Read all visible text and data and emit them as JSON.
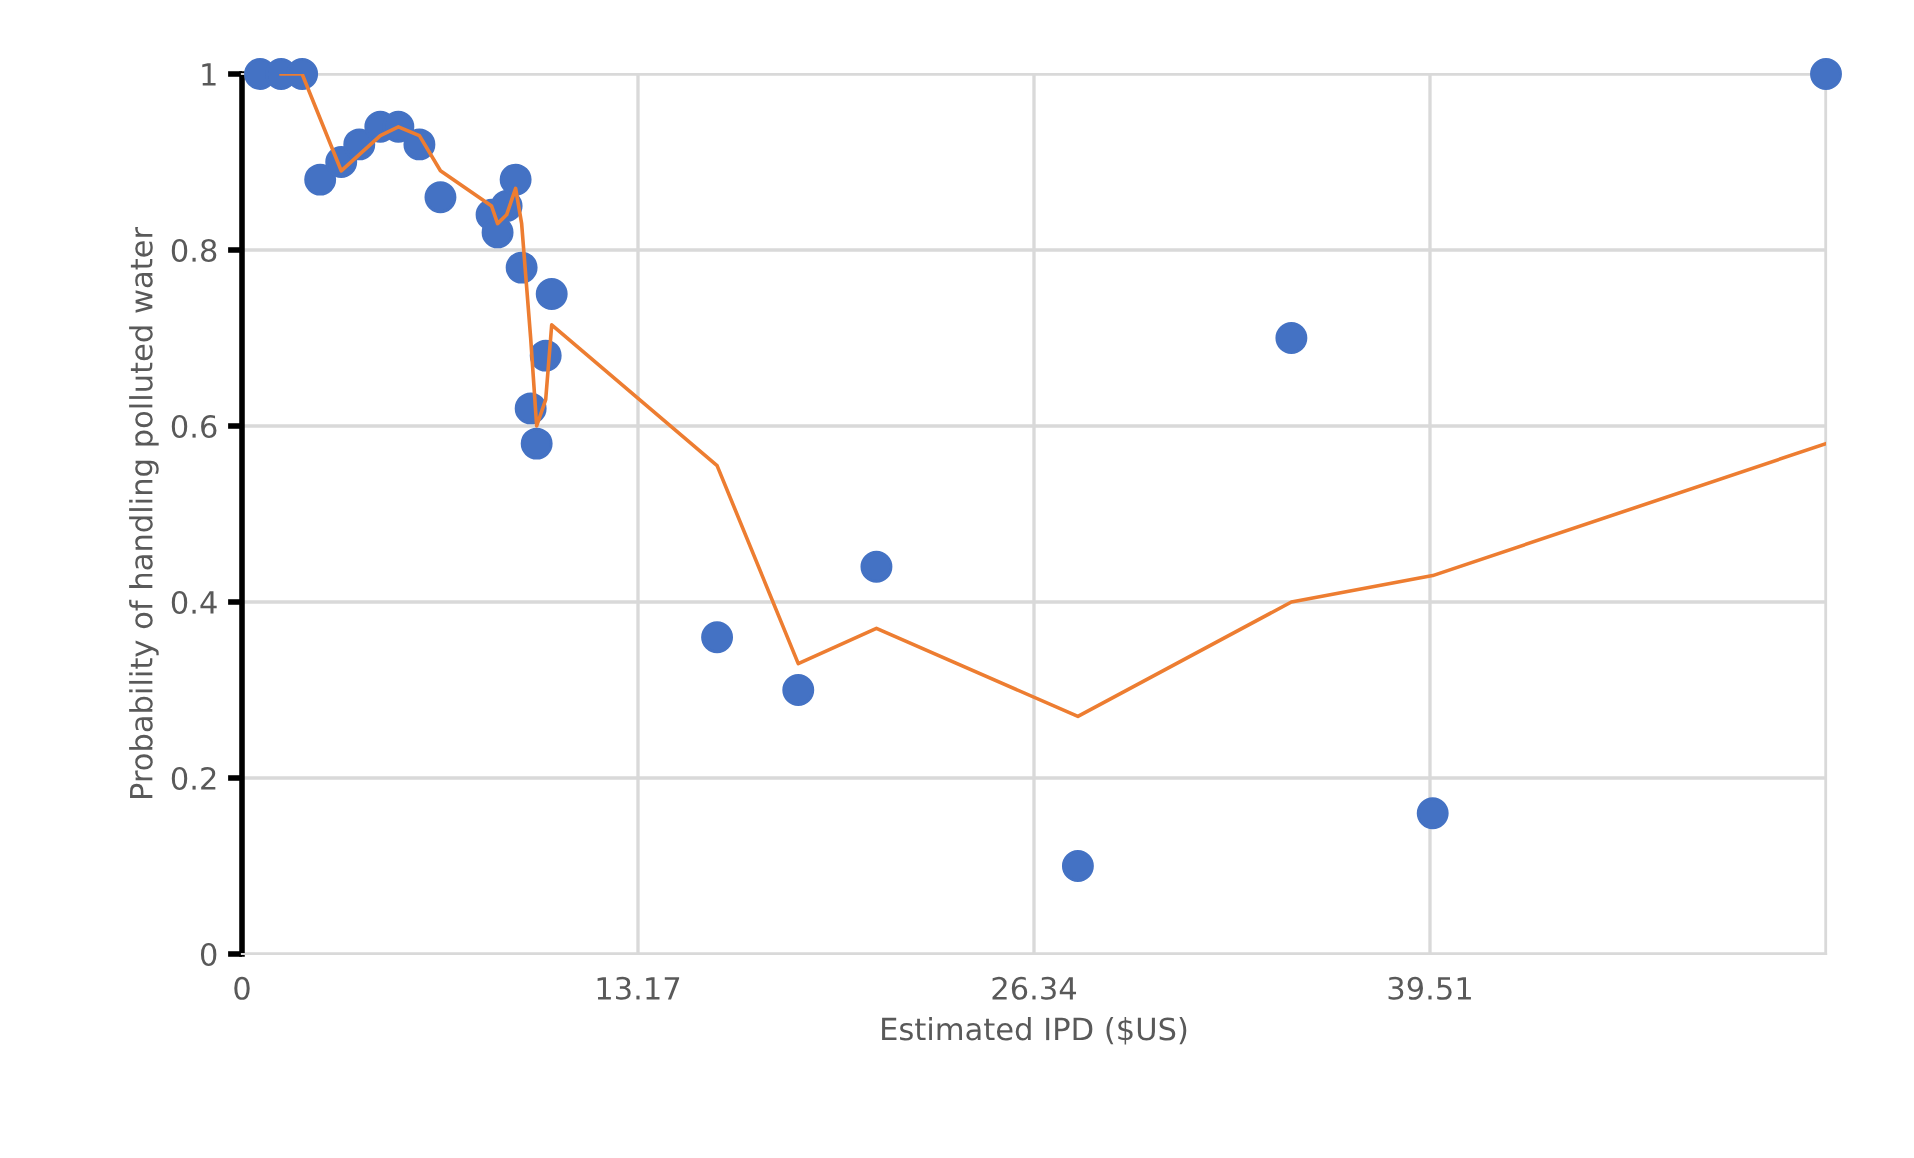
{
  "chart_data": {
    "type": "scatter",
    "xlabel": "Estimated IPD ($US)",
    "ylabel": "Probability of handling polluted water",
    "series": [
      {
        "color": "#4472c4",
        "marker": "circle",
        "x": [
          0.6,
          1.3,
          2.0,
          2.6,
          3.3,
          3.9,
          4.6,
          5.2,
          5.9,
          6.6,
          8.3,
          8.5,
          8.8,
          9.1,
          9.3,
          9.6,
          9.8,
          10.1,
          10.3,
          15.8,
          18.5,
          21.1,
          27.8,
          34.9,
          39.6,
          52.68
        ],
        "values": [
          1,
          1,
          1,
          0.88,
          0.9,
          0.92,
          0.94,
          0.94,
          0.92,
          0.86,
          0.84,
          0.82,
          0.85,
          0.88,
          0.78,
          0.62,
          0.58,
          0.68,
          0.75,
          0.36,
          0.3,
          0.44,
          0.1,
          0.7,
          0.16,
          1
        ]
      },
      {
        "type": "line",
        "color": "#ed7d31",
        "x": [
          1.3,
          2.0,
          3.3,
          4.6,
          5.2,
          5.9,
          6.6,
          8.3,
          8.5,
          8.8,
          9.1,
          9.3,
          9.6,
          9.8,
          10.1,
          10.3,
          15.8,
          18.5,
          21.1,
          27.8,
          34.9,
          39.6,
          52.68
        ],
        "values": [
          1.0,
          1.0,
          0.89,
          0.93,
          0.94,
          0.93,
          0.89,
          0.85,
          0.83,
          0.84,
          0.87,
          0.83,
          0.7,
          0.6,
          0.63,
          0.715,
          0.555,
          0.33,
          0.37,
          0.27,
          0.4,
          0.43,
          0.58
        ]
      }
    ],
    "xlim": [
      0,
      52.68
    ],
    "xticks": [
      0,
      13.17,
      26.34,
      39.51,
      {
        "value": 52.68,
        "label": null
      }
    ],
    "ylim": [
      0,
      1
    ],
    "yticks": [
      0,
      0.2,
      0.4,
      0.6,
      0.8,
      1
    ],
    "grid": true
  }
}
